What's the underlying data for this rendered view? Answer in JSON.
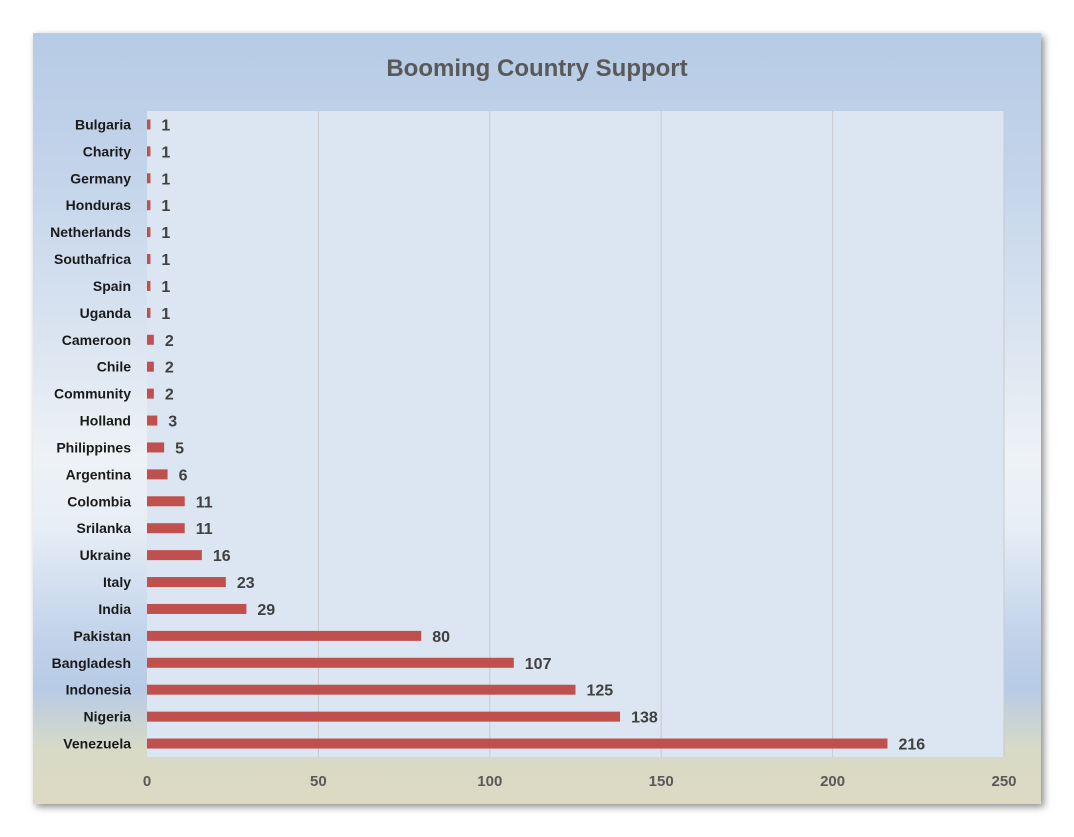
{
  "chart_data": {
    "type": "bar",
    "orientation": "horizontal",
    "title": "Booming Country Support",
    "xlabel": "",
    "ylabel": "",
    "xlim": [
      0,
      250
    ],
    "x_ticks": [
      0,
      50,
      100,
      150,
      200,
      250
    ],
    "x_tick_labels": [
      "0",
      "50",
      "100",
      "150",
      "200",
      "250"
    ],
    "grid": true,
    "legend": "none",
    "categories": [
      "Bulgaria",
      "Charity",
      "Germany",
      "Honduras",
      "Netherlands",
      "Southafrica",
      "Spain",
      "Uganda",
      "Cameroon",
      "Chile",
      "Community",
      "Holland",
      "Philippines",
      "Argentina",
      "Colombia",
      "Srilanka",
      "Ukraine",
      "Italy",
      "India",
      "Pakistan",
      "Bangladesh",
      "Indonesia",
      "Nigeria",
      "Venezuela"
    ],
    "values": [
      1,
      1,
      1,
      1,
      1,
      1,
      1,
      1,
      2,
      2,
      2,
      3,
      5,
      6,
      11,
      11,
      16,
      23,
      29,
      80,
      107,
      125,
      138,
      216
    ],
    "value_labels": [
      "1",
      "1",
      "1",
      "1",
      "1",
      "1",
      "1",
      "1",
      "2",
      "2",
      "2",
      "3",
      "5",
      "6",
      "11",
      "11",
      "16",
      "23",
      "29",
      "80",
      "107",
      "125",
      "138",
      "216"
    ],
    "colors": {
      "bar": "#c0504d",
      "plot_area": "#dce6f2",
      "gridline": "#c9c9c9"
    }
  }
}
